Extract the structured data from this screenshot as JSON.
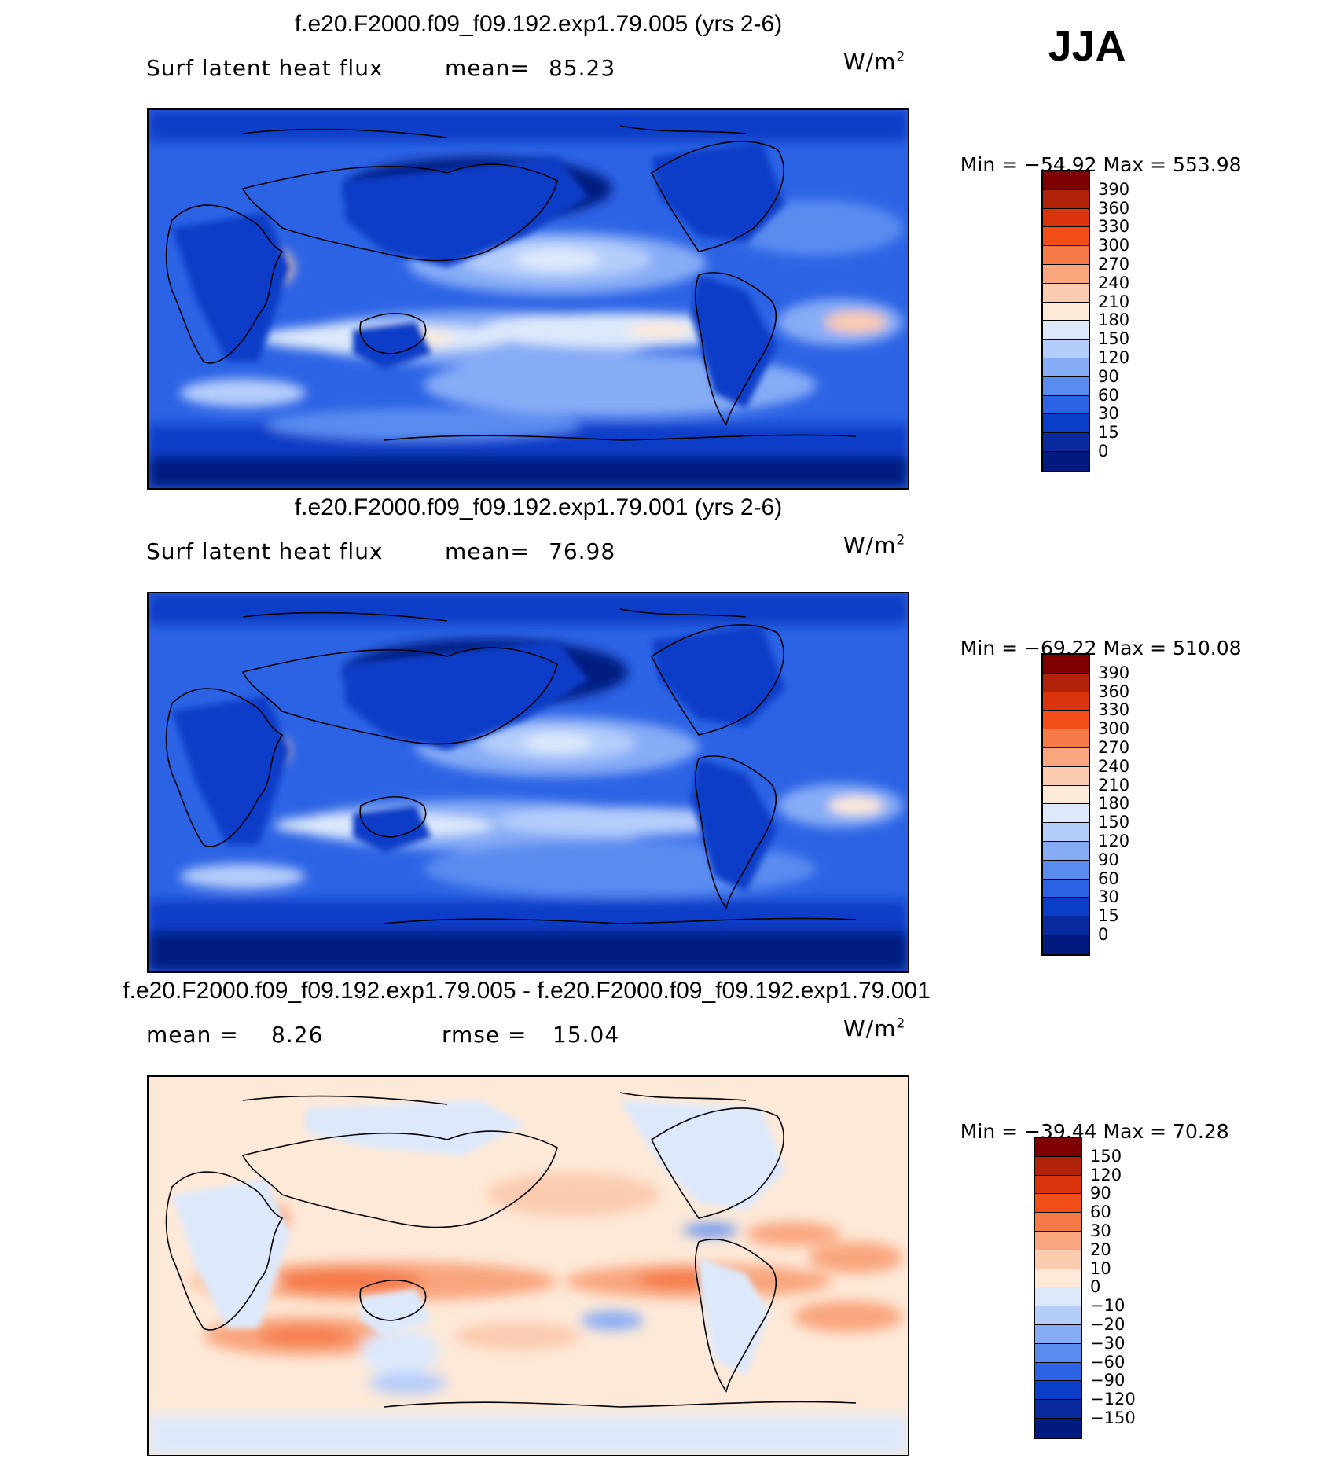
{
  "season": "JJA",
  "panels": [
    {
      "title": "f.e20.F2000.f09_f09.192.exp1.79.005 (yrs 2-6)",
      "subtitle_left": "Surf latent heat flux",
      "stat_label": "mean=",
      "stat_value": "85.23",
      "units": "W/m",
      "units_sup": "2",
      "min_label": "Min =",
      "min_value": "−54.92",
      "max_label": "Max =",
      "max_value": "553.98",
      "colorbar_labels": [
        "390",
        "360",
        "330",
        "300",
        "270",
        "240",
        "210",
        "180",
        "150",
        "120",
        "90",
        "60",
        "30",
        "15",
        "0"
      ],
      "colorbar_colors": [
        "#7f0000",
        "#b0220a",
        "#d9340c",
        "#f24e18",
        "#f57a48",
        "#f9a57d",
        "#fbcbb0",
        "#fde9d8",
        "#dde9fb",
        "#b5cdfb",
        "#86acf6",
        "#5a8cf0",
        "#2c63e5",
        "#0b3ec8",
        "#0a2aa0",
        "#001a80"
      ],
      "map_variant": "control"
    },
    {
      "title": "f.e20.F2000.f09_f09.192.exp1.79.001 (yrs 2-6)",
      "subtitle_left": "Surf latent heat flux",
      "stat_label": "mean=",
      "stat_value": "76.98",
      "units": "W/m",
      "units_sup": "2",
      "min_label": "Min =",
      "min_value": "−69.22",
      "max_label": "Max =",
      "max_value": "510.08",
      "colorbar_labels": [
        "390",
        "360",
        "330",
        "300",
        "270",
        "240",
        "210",
        "180",
        "150",
        "120",
        "90",
        "60",
        "30",
        "15",
        "0"
      ],
      "colorbar_colors": [
        "#7f0000",
        "#b0220a",
        "#d9340c",
        "#f24e18",
        "#f57a48",
        "#f9a57d",
        "#fbcbb0",
        "#fde9d8",
        "#dde9fb",
        "#b5cdfb",
        "#86acf6",
        "#5a8cf0",
        "#2c63e5",
        "#0b3ec8",
        "#0a2aa0",
        "#001a80"
      ],
      "map_variant": "control2"
    },
    {
      "title": "f.e20.F2000.f09_f09.192.exp1.79.005 - f.e20.F2000.f09_f09.192.exp1.79.001",
      "subtitle_left": "mean =",
      "subtitle_left_value": "8.26",
      "stat_label": "rmse =",
      "stat_value": "15.04",
      "units": "W/m",
      "units_sup": "2",
      "min_label": "Min =",
      "min_value": "−39.44",
      "max_label": "Max =",
      "max_value": "70.28",
      "colorbar_labels": [
        "150",
        "120",
        "90",
        "60",
        "30",
        "20",
        "10",
        "0",
        "−10",
        "−20",
        "−30",
        "−60",
        "−90",
        "−120",
        "−150"
      ],
      "colorbar_colors": [
        "#7f0000",
        "#b0220a",
        "#d9340c",
        "#f24e18",
        "#f57a48",
        "#f9a57d",
        "#fbcbb0",
        "#fde9d8",
        "#dde9fb",
        "#b5cdfb",
        "#86acf6",
        "#5a8cf0",
        "#2c63e5",
        "#0b3ec8",
        "#0a2aa0",
        "#001a80"
      ],
      "map_variant": "diff"
    }
  ]
}
